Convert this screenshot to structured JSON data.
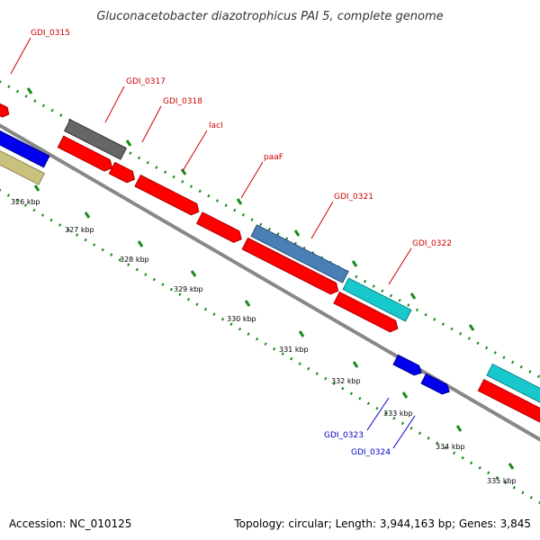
{
  "header": {
    "title": "Gluconacetobacter diazotrophicus PAI 5, complete genome"
  },
  "footer": {
    "accession": "Accession: NC_010125",
    "summary": "Topology: circular; Length: 3,944,163 bp; Genes: 3,845"
  },
  "ruler": {
    "ticks": [
      "326 kbp",
      "327 kbp",
      "328 kbp",
      "329 kbp",
      "330 kbp",
      "331 kbp",
      "332 kbp",
      "333 kbp",
      "334 kbp",
      "335 kbp"
    ]
  },
  "gene_labels": {
    "outer": [
      "GDI_0315",
      "GDI_0317",
      "GDI_0318",
      "lacI",
      "paaF",
      "GDI_0321",
      "GDI_0322"
    ],
    "inner": [
      "GDI_0323",
      "GDI_0324"
    ]
  },
  "colors": {
    "outer_label": "#cc0000",
    "inner_label": "#0000cc",
    "cds": "#ff0000",
    "gene_gray": "#666666",
    "gene_steelblue": "#4a7fb5",
    "gene_cyan": "#17c9cc",
    "gene_blue": "#0000ee",
    "gene_khaki": "#c8c27e",
    "backbone": "#888888",
    "dots": "#1a8a1a"
  }
}
